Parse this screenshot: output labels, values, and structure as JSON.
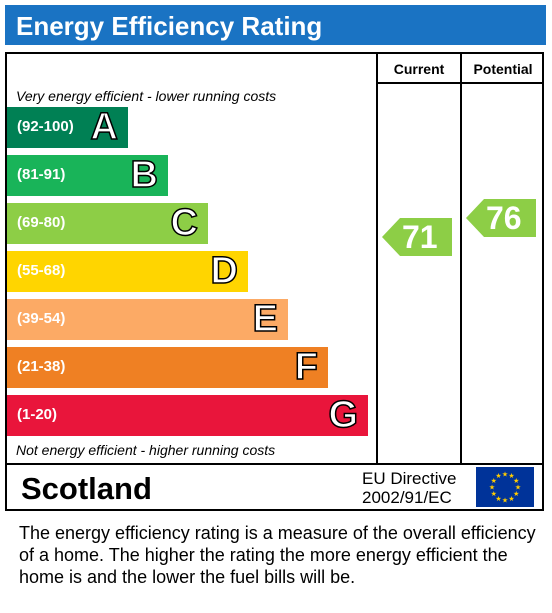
{
  "header": {
    "title": "Energy Efficiency Rating"
  },
  "columns": {
    "current": "Current",
    "potential": "Potential"
  },
  "notes": {
    "top": "Very energy efficient - lower running costs",
    "bottom": "Not energy efficient - higher running costs"
  },
  "chart_data": {
    "type": "bar",
    "title": "Energy Efficiency Rating",
    "categories": [
      "A",
      "B",
      "C",
      "D",
      "E",
      "F",
      "G"
    ],
    "bands": [
      {
        "letter": "A",
        "range": "(92-100)",
        "color": "#008054"
      },
      {
        "letter": "B",
        "range": "(81-91)",
        "color": "#19b459"
      },
      {
        "letter": "C",
        "range": "(69-80)",
        "color": "#8dce46"
      },
      {
        "letter": "D",
        "range": "(55-68)",
        "color": "#ffd500"
      },
      {
        "letter": "E",
        "range": "(39-54)",
        "color": "#fcaa65"
      },
      {
        "letter": "F",
        "range": "(21-38)",
        "color": "#ef8023"
      },
      {
        "letter": "G",
        "range": "(1-20)",
        "color": "#e9153b"
      }
    ],
    "series": [
      {
        "name": "Current",
        "value": 71,
        "band": "C",
        "color": "#8dce46"
      },
      {
        "name": "Potential",
        "value": 76,
        "band": "C",
        "color": "#8dce46"
      }
    ]
  },
  "footer": {
    "country": "Scotland",
    "directive_line1": "EU Directive",
    "directive_line2": "2002/91/EC",
    "flag_icon": "eu-flag-icon"
  },
  "description": "The energy efficiency rating is a measure of the overall efficiency of a home.  The higher the rating the more energy efficient the home is and the lower the fuel bills will be."
}
